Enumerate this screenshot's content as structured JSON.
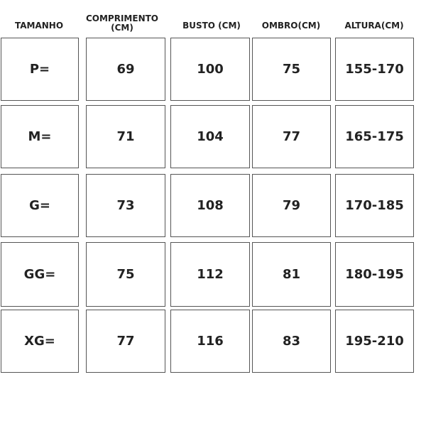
{
  "headers": [
    "TAMANHO",
    "COMPRIMENTO (CM)",
    "BUSTO (CM)",
    "OMBRO(CM)",
    "ALTURA(CM)"
  ],
  "rows": [
    [
      "P=",
      "69",
      "100",
      "75",
      "155-170"
    ],
    [
      "M=",
      "71",
      "104",
      "77",
      "165-175"
    ],
    [
      "G=",
      "73",
      "108",
      "79",
      "170-185"
    ],
    [
      "GG=",
      "75",
      "112",
      "81",
      "180-195"
    ],
    [
      "XG=",
      "77",
      "116",
      "83",
      "195-210"
    ]
  ]
}
